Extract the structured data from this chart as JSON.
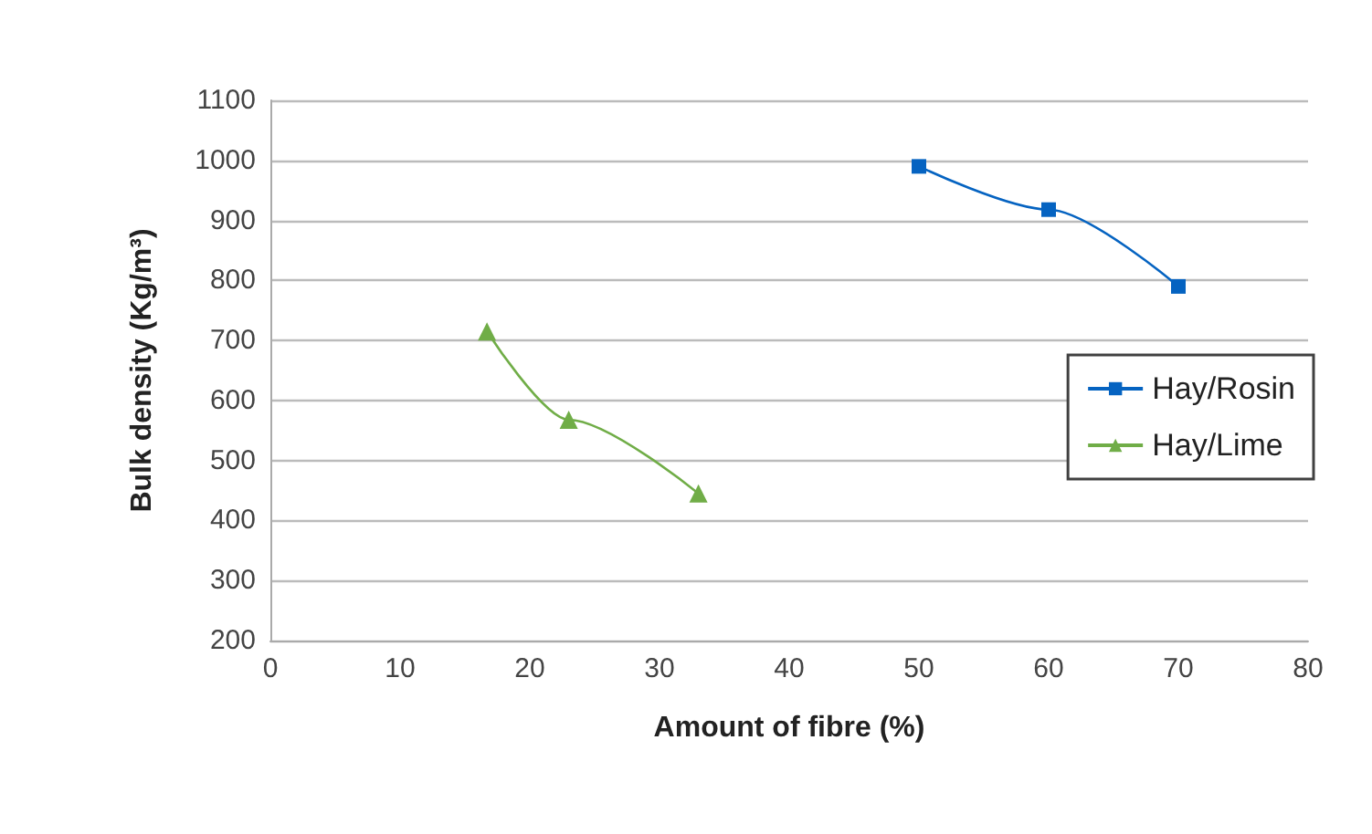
{
  "chart_data": {
    "type": "line",
    "xlabel": "Amount of fibre (%)",
    "ylabel": "Bulk density (Kg/m³)",
    "xlim": [
      0,
      80
    ],
    "xticks": [
      0,
      10,
      20,
      30,
      40,
      50,
      60,
      70,
      80
    ],
    "ylim": [
      200,
      1100
    ],
    "yticks": [
      200,
      300,
      400,
      500,
      600,
      700,
      800,
      900,
      1000,
      1100
    ],
    "grid": "y",
    "legend": "right",
    "line_style": "solid",
    "series": [
      {
        "name": "Hay/Rosin",
        "color": "#0563c1",
        "marker": "square",
        "x": [
          50,
          60,
          70
        ],
        "values": [
          990,
          918,
          790
        ]
      },
      {
        "name": "Hay/Lime",
        "color": "#70ad47",
        "marker": "triangle",
        "x": [
          16.7,
          23,
          33
        ],
        "values": [
          715,
          568,
          445
        ]
      }
    ]
  }
}
